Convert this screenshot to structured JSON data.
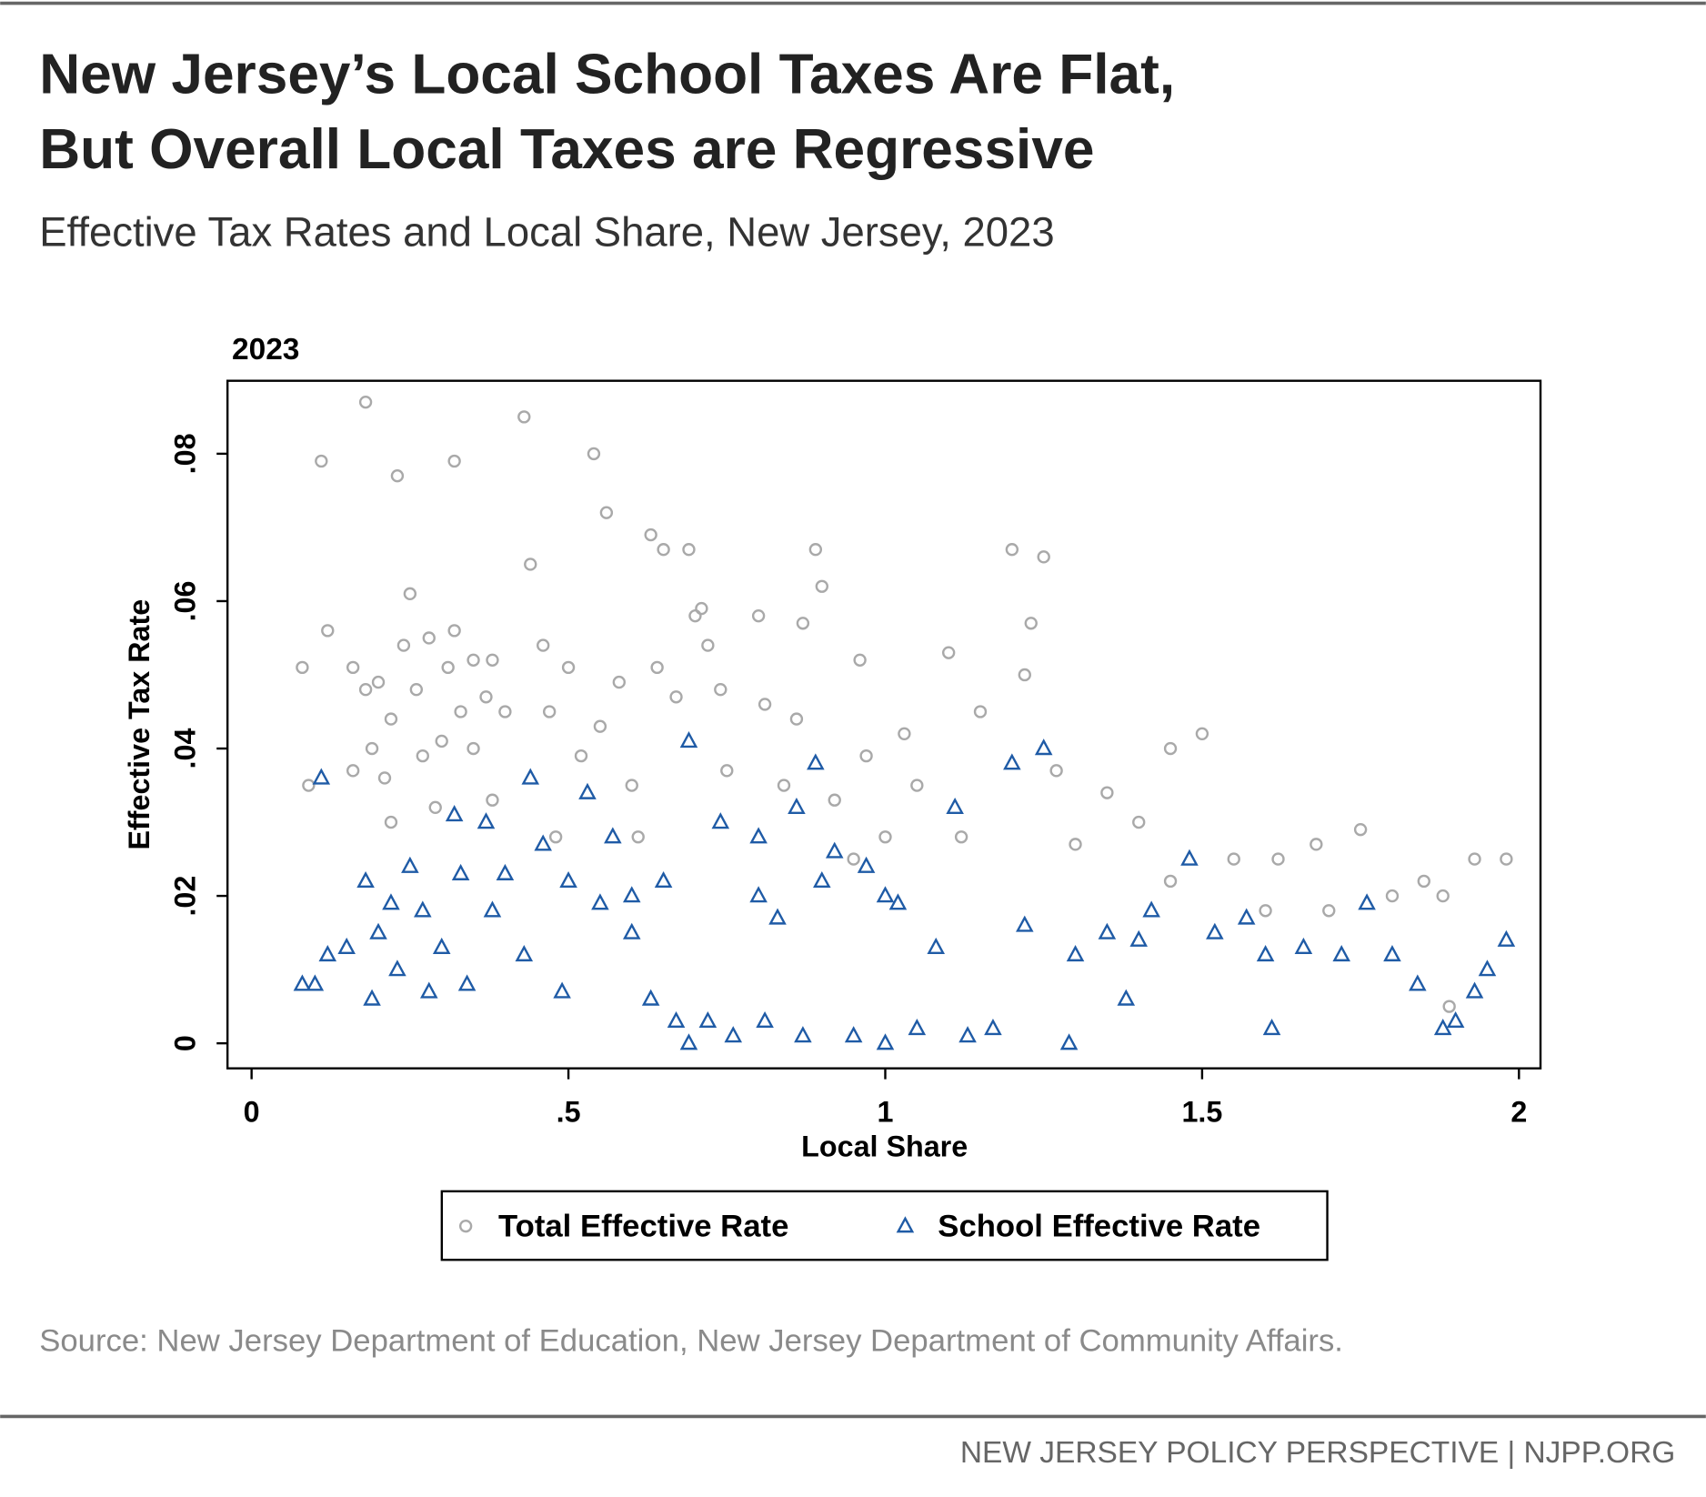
{
  "chart_data": {
    "type": "scatter",
    "title": [
      "New Jersey’s Local School Taxes Are Flat,",
      "But Overall Local Taxes are Regressive"
    ],
    "subtitle": "Effective Tax Rates and Local Share, New Jersey, 2023",
    "panel_title": "2023",
    "x_label": "Local Share",
    "y_label": "Effective Tax Rate",
    "source": "Source: New Jersey Department of Education, New Jersey Department of Community Affairs.",
    "footer": "NEW JERSEY POLICY PERSPECTIVE | NJPP.ORG",
    "xlim": [
      -0.038,
      2.034
    ],
    "ylim": [
      -0.0034,
      0.0899
    ],
    "xticks": [
      0,
      {
        "value": 0.5,
        "label": ".5"
      },
      1,
      {
        "value": 1.5,
        "label": "1.5"
      },
      2
    ],
    "yticks": [
      0,
      {
        "value": 0.02,
        "label": ".02"
      },
      {
        "value": 0.04,
        "label": ".04"
      },
      {
        "value": 0.06,
        "label": ".06"
      },
      {
        "value": 0.08,
        "label": ".08"
      }
    ],
    "grid": false,
    "legend": "bottom",
    "series": [
      {
        "name": "Total Effective Rate",
        "color": "#a9a9a9",
        "marker": "circle",
        "x": [
          0.08,
          0.09,
          0.11,
          0.12,
          0.16,
          0.16,
          0.18,
          0.18,
          0.19,
          0.2,
          0.21,
          0.22,
          0.22,
          0.23,
          0.24,
          0.25,
          0.26,
          0.27,
          0.28,
          0.29,
          0.3,
          0.31,
          0.32,
          0.32,
          0.33,
          0.35,
          0.35,
          0.37,
          0.38,
          0.38,
          0.4,
          0.43,
          0.44,
          0.46,
          0.47,
          0.48,
          0.5,
          0.52,
          0.54,
          0.55,
          0.56,
          0.58,
          0.6,
          0.61,
          0.63,
          0.64,
          0.65,
          0.67,
          0.69,
          0.7,
          0.71,
          0.72,
          0.74,
          0.75,
          0.8,
          0.81,
          0.84,
          0.86,
          0.87,
          0.89,
          0.9,
          0.92,
          0.95,
          0.96,
          0.97,
          1.0,
          1.03,
          1.05,
          1.1,
          1.12,
          1.15,
          1.2,
          1.22,
          1.23,
          1.25,
          1.27,
          1.3,
          1.35,
          1.4,
          1.45,
          1.5,
          1.55,
          1.62,
          1.68,
          1.75,
          1.8,
          1.85,
          1.88,
          1.93,
          1.98,
          1.89,
          1.7,
          1.6,
          1.45
        ],
        "values": [
          0.051,
          0.035,
          0.079,
          0.056,
          0.051,
          0.037,
          0.087,
          0.048,
          0.04,
          0.049,
          0.036,
          0.044,
          0.03,
          0.077,
          0.054,
          0.061,
          0.048,
          0.039,
          0.055,
          0.032,
          0.041,
          0.051,
          0.079,
          0.056,
          0.045,
          0.052,
          0.04,
          0.047,
          0.052,
          0.033,
          0.045,
          0.085,
          0.065,
          0.054,
          0.045,
          0.028,
          0.051,
          0.039,
          0.08,
          0.043,
          0.072,
          0.049,
          0.035,
          0.028,
          0.069,
          0.051,
          0.067,
          0.047,
          0.067,
          0.058,
          0.059,
          0.054,
          0.048,
          0.037,
          0.058,
          0.046,
          0.035,
          0.044,
          0.057,
          0.067,
          0.062,
          0.033,
          0.025,
          0.052,
          0.039,
          0.028,
          0.042,
          0.035,
          0.053,
          0.028,
          0.045,
          0.067,
          0.05,
          0.057,
          0.066,
          0.037,
          0.027,
          0.034,
          0.03,
          0.04,
          0.042,
          0.025,
          0.025,
          0.027,
          0.029,
          0.02,
          0.022,
          0.02,
          0.025,
          0.025,
          0.005,
          0.018,
          0.018,
          0.022
        ]
      },
      {
        "name": "School Effective Rate",
        "color": "#1f5ba6",
        "marker": "triangle",
        "x": [
          0.08,
          0.1,
          0.11,
          0.12,
          0.15,
          0.18,
          0.19,
          0.2,
          0.22,
          0.23,
          0.25,
          0.27,
          0.28,
          0.3,
          0.32,
          0.33,
          0.34,
          0.37,
          0.38,
          0.4,
          0.43,
          0.44,
          0.46,
          0.49,
          0.5,
          0.53,
          0.55,
          0.57,
          0.6,
          0.63,
          0.65,
          0.67,
          0.69,
          0.69,
          0.72,
          0.74,
          0.76,
          0.8,
          0.81,
          0.83,
          0.86,
          0.87,
          0.89,
          0.9,
          0.92,
          0.95,
          0.97,
          1.0,
          1.02,
          1.05,
          1.08,
          1.11,
          1.13,
          1.17,
          1.2,
          1.22,
          1.25,
          1.29,
          1.3,
          1.35,
          1.38,
          1.42,
          1.48,
          1.52,
          1.57,
          1.61,
          1.66,
          1.72,
          1.76,
          1.8,
          1.84,
          1.88,
          1.9,
          1.93,
          1.95,
          1.98,
          1.6,
          1.4,
          1.0,
          0.8,
          0.6
        ],
        "values": [
          0.008,
          0.008,
          0.036,
          0.012,
          0.013,
          0.022,
          0.006,
          0.015,
          0.019,
          0.01,
          0.024,
          0.018,
          0.007,
          0.013,
          0.031,
          0.023,
          0.008,
          0.03,
          0.018,
          0.023,
          0.012,
          0.036,
          0.027,
          0.007,
          0.022,
          0.034,
          0.019,
          0.028,
          0.015,
          0.006,
          0.022,
          0.003,
          0.041,
          0.0,
          0.003,
          0.03,
          0.001,
          0.028,
          0.003,
          0.017,
          0.032,
          0.001,
          0.038,
          0.022,
          0.026,
          0.001,
          0.024,
          0.0,
          0.019,
          0.002,
          0.013,
          0.032,
          0.001,
          0.002,
          0.038,
          0.016,
          0.04,
          0.0,
          0.012,
          0.015,
          0.006,
          0.018,
          0.025,
          0.015,
          0.017,
          0.002,
          0.013,
          0.012,
          0.019,
          0.012,
          0.008,
          0.002,
          0.003,
          0.007,
          0.01,
          0.014,
          0.012,
          0.014,
          0.02,
          0.02,
          0.02
        ]
      }
    ]
  }
}
